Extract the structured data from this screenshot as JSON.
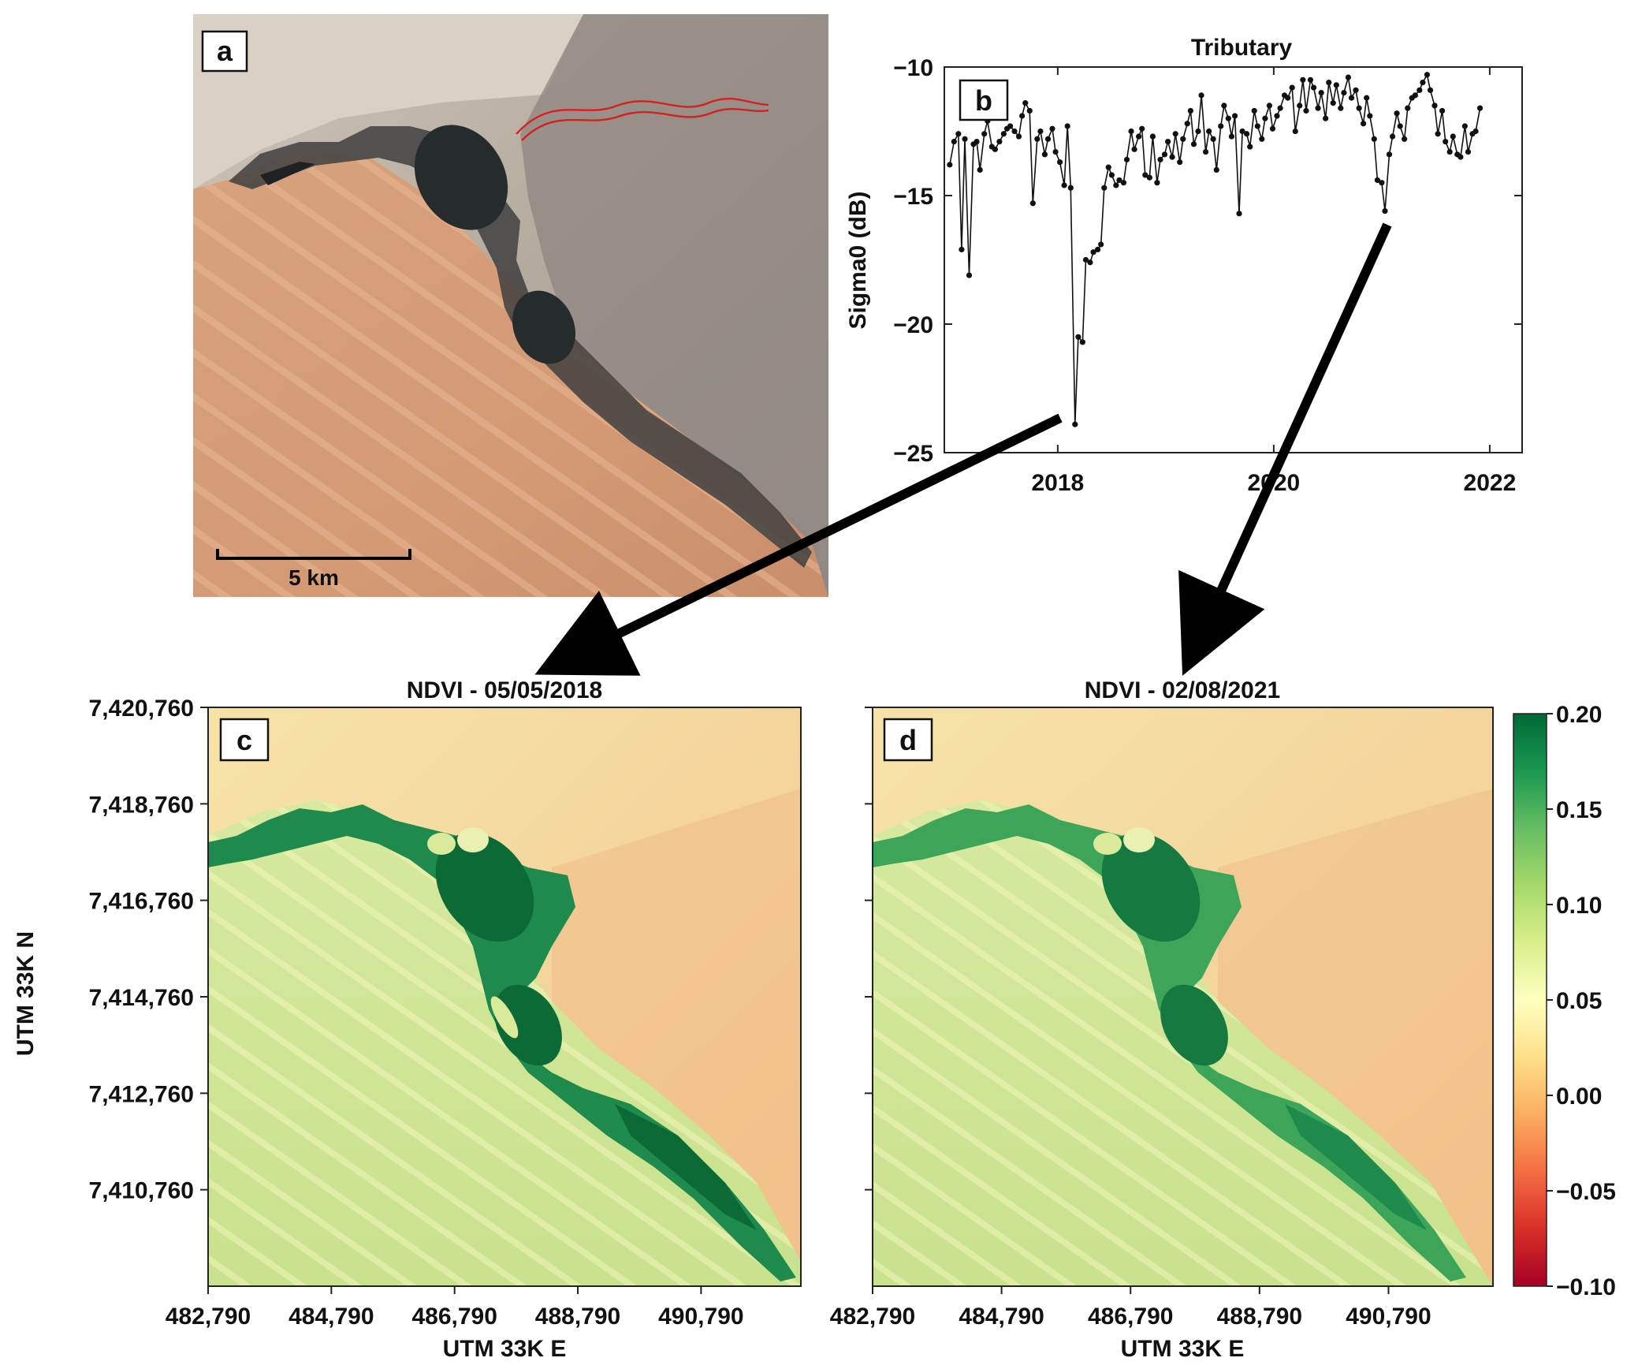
{
  "panels": {
    "a": {
      "label": "a",
      "scalebar_label": "5 km"
    },
    "b": {
      "label": "b"
    },
    "c": {
      "label": "c",
      "title": "NDVI - 05/05/2018"
    },
    "d": {
      "label": "d",
      "title": "NDVI - 02/08/2021"
    }
  },
  "colorbar": {
    "ticks": [
      "0.20",
      "0.15",
      "0.10",
      "0.05",
      "0.00",
      "−0.05",
      "−0.10"
    ],
    "range": [
      -0.1,
      0.2
    ],
    "colors": [
      "#a50026",
      "#d73027",
      "#f46d43",
      "#fdae61",
      "#fee08b",
      "#ffffbf",
      "#d9ef8b",
      "#a6d96a",
      "#66bd63",
      "#1a9850",
      "#006837"
    ]
  },
  "map_axes": {
    "xlabel": "UTM 33K E",
    "ylabel": "UTM 33K N",
    "xticks": [
      "482,790",
      "484,790",
      "486,790",
      "488,790",
      "490,790"
    ],
    "yticks": [
      "7,420,760",
      "7,418,760",
      "7,416,760",
      "7,414,760",
      "7,412,760",
      "7,410,760"
    ],
    "xlim": [
      482790,
      492410
    ],
    "ylim": [
      7408760,
      7420760
    ]
  },
  "chart_data": {
    "type": "line",
    "title": "Tributary",
    "xlabel": "",
    "ylabel": "Sigma0 (dB)",
    "xlim": [
      2016.95,
      2022.3
    ],
    "ylim": [
      -25,
      -10
    ],
    "xticks": [
      "2018",
      "2020",
      "2022"
    ],
    "yticks": [
      "−10",
      "−15",
      "−20",
      "−25"
    ],
    "grid": false,
    "color": "#111111",
    "series": [
      {
        "x": [
          2017.0,
          2017.04,
          2017.08,
          2017.11,
          2017.14,
          2017.18,
          2017.22,
          2017.25,
          2017.28,
          2017.32,
          2017.35,
          2017.39,
          2017.42,
          2017.46,
          2017.5,
          2017.53,
          2017.56,
          2017.6,
          2017.64,
          2017.67,
          2017.7,
          2017.74,
          2017.77,
          2017.81,
          2017.84,
          2017.88,
          2017.91,
          2017.95,
          2017.98,
          2018.02,
          2018.06,
          2018.09,
          2018.12,
          2018.16,
          2018.19,
          2018.23,
          2018.26,
          2018.3,
          2018.33,
          2018.37,
          2018.4,
          2018.43,
          2018.47,
          2018.5,
          2018.54,
          2018.57,
          2018.61,
          2018.64,
          2018.68,
          2018.71,
          2018.75,
          2018.78,
          2018.81,
          2018.85,
          2018.88,
          2018.92,
          2018.95,
          2018.99,
          2019.02,
          2019.06,
          2019.09,
          2019.13,
          2019.16,
          2019.2,
          2019.23,
          2019.26,
          2019.3,
          2019.33,
          2019.37,
          2019.4,
          2019.44,
          2019.47,
          2019.51,
          2019.54,
          2019.58,
          2019.61,
          2019.64,
          2019.68,
          2019.71,
          2019.75,
          2019.78,
          2019.82,
          2019.85,
          2019.89,
          2019.92,
          2019.96,
          2019.99,
          2020.03,
          2020.06,
          2020.1,
          2020.13,
          2020.17,
          2020.2,
          2020.24,
          2020.27,
          2020.3,
          2020.34,
          2020.37,
          2020.41,
          2020.44,
          2020.48,
          2020.51,
          2020.55,
          2020.58,
          2020.62,
          2020.65,
          2020.69,
          2020.72,
          2020.76,
          2020.79,
          2020.83,
          2020.86,
          2020.89,
          2020.93,
          2020.96,
          2021.0,
          2021.03,
          2021.07,
          2021.1,
          2021.14,
          2021.17,
          2021.21,
          2021.24,
          2021.28,
          2021.31,
          2021.35,
          2021.38,
          2021.42,
          2021.45,
          2021.49,
          2021.52,
          2021.56,
          2021.59,
          2021.63,
          2021.66,
          2021.7,
          2021.73,
          2021.77,
          2021.8,
          2021.84,
          2021.87,
          2021.91
        ],
        "y": [
          -13.8,
          -12.9,
          -12.6,
          -17.1,
          -12.8,
          -18.1,
          -13.0,
          -12.9,
          -14.0,
          -12.6,
          -12.1,
          -13.1,
          -13.2,
          -12.9,
          -12.6,
          -12.4,
          -12.3,
          -12.5,
          -12.7,
          -11.9,
          -11.4,
          -11.7,
          -15.3,
          -12.8,
          -12.5,
          -13.4,
          -12.8,
          -12.4,
          -13.3,
          -13.7,
          -14.6,
          -12.3,
          -14.7,
          -23.9,
          -20.5,
          -20.7,
          -17.5,
          -17.6,
          -17.2,
          -17.1,
          -16.9,
          -14.7,
          -13.9,
          -14.2,
          -14.6,
          -14.4,
          -14.5,
          -13.6,
          -12.5,
          -13.2,
          -12.7,
          -12.4,
          -14.2,
          -14.3,
          -12.7,
          -14.5,
          -13.6,
          -13.4,
          -12.9,
          -13.5,
          -12.6,
          -13.7,
          -12.8,
          -12.2,
          -11.7,
          -13.0,
          -12.5,
          -11.1,
          -13.3,
          -12.5,
          -12.8,
          -14.0,
          -12.3,
          -11.5,
          -12.0,
          -12.7,
          -11.9,
          -15.7,
          -12.5,
          -12.6,
          -13.1,
          -11.7,
          -12.3,
          -12.8,
          -12.0,
          -11.5,
          -12.4,
          -11.9,
          -11.6,
          -11.1,
          -11.2,
          -10.8,
          -12.5,
          -11.5,
          -10.5,
          -11.7,
          -10.5,
          -10.8,
          -11.6,
          -11.0,
          -12.0,
          -10.6,
          -11.4,
          -10.7,
          -11.6,
          -11.0,
          -10.4,
          -11.2,
          -10.9,
          -11.6,
          -12.2,
          -11.2,
          -11.9,
          -12.8,
          -14.4,
          -14.5,
          -15.6,
          -13.4,
          -12.7,
          -11.8,
          -12.3,
          -12.8,
          -11.6,
          -11.2,
          -11.1,
          -10.9,
          -10.6,
          -10.3,
          -10.9,
          -11.5,
          -12.6,
          -11.7,
          -12.9,
          -13.3,
          -12.7,
          -13.4,
          -13.5,
          -12.3,
          -13.3,
          -12.6,
          -12.5,
          -11.6
        ]
      }
    ]
  }
}
